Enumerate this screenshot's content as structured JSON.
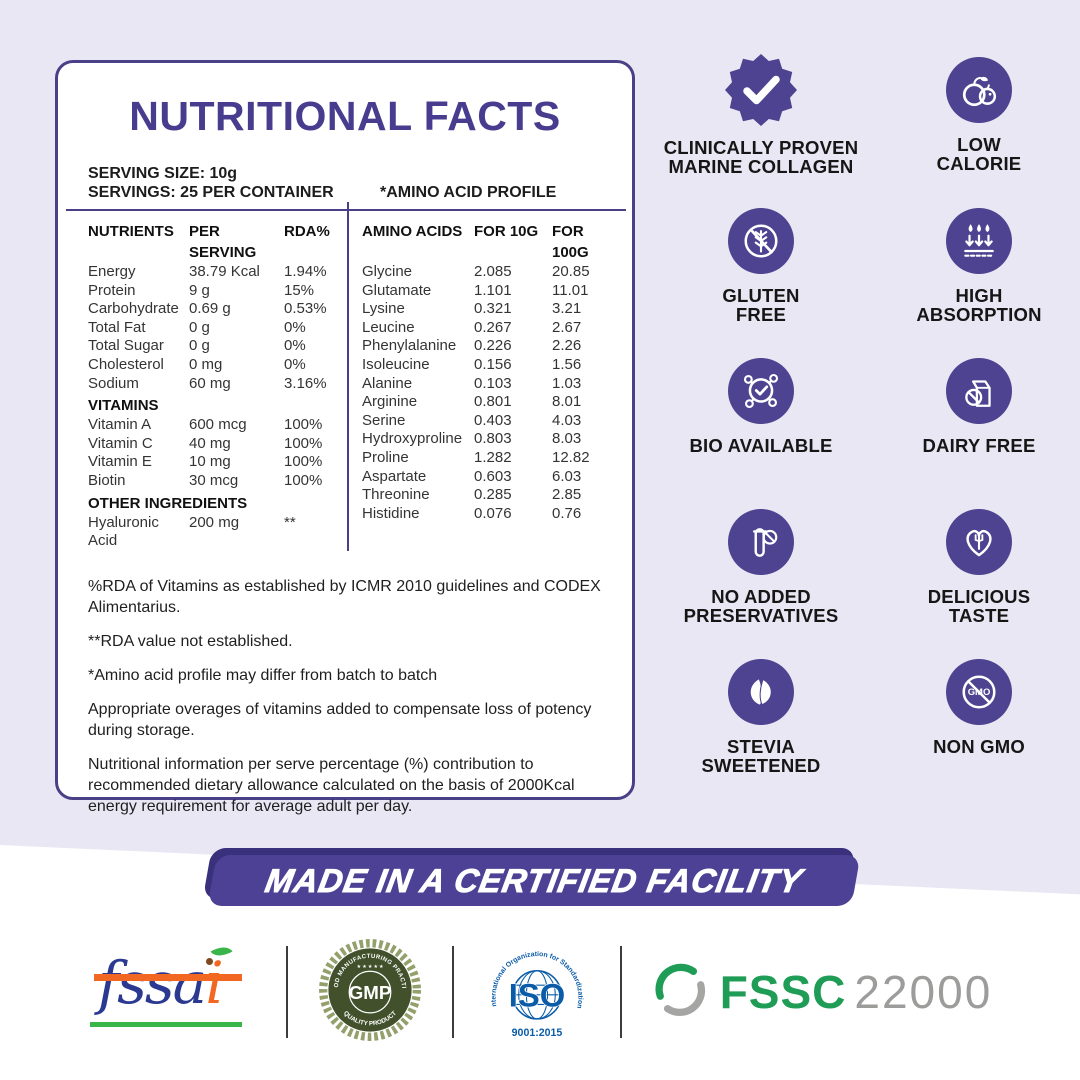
{
  "panel": {
    "title": "NUTRITIONAL FACTS",
    "serving_size": "SERVING SIZE: 10g",
    "servings": "SERVINGS: 25 PER CONTAINER",
    "amino_profile_title": "*AMINO ACID PROFILE",
    "left_table": {
      "header": [
        "NUTRIENTS",
        "PER SERVING",
        "RDA%"
      ],
      "sections": [
        {
          "rows": [
            [
              "Energy",
              "38.79 Kcal",
              "1.94%"
            ],
            [
              "Protein",
              "9 g",
              "15%"
            ],
            [
              "Carbohydrate",
              "0.69 g",
              "0.53%"
            ],
            [
              "Total Fat",
              "0 g",
              "0%"
            ],
            [
              "Total Sugar",
              "0 g",
              "0%"
            ],
            [
              "Cholesterol",
              "0 mg",
              "0%"
            ],
            [
              "Sodium",
              "60 mg",
              "3.16%"
            ]
          ]
        },
        {
          "title": "VITAMINS",
          "rows": [
            [
              "Vitamin A",
              "600 mcg",
              "100%"
            ],
            [
              "Vitamin C",
              "40 mg",
              "100%"
            ],
            [
              "Vitamin E",
              "10 mg",
              "100%"
            ],
            [
              "Biotin",
              "30 mcg",
              "100%"
            ]
          ]
        },
        {
          "title": "OTHER INGREDIENTS",
          "rows": [
            [
              "Hyaluronic Acid",
              "200 mg",
              "**"
            ]
          ]
        }
      ]
    },
    "right_table": {
      "header": [
        "AMINO ACIDS",
        "FOR 10G",
        "FOR 100G"
      ],
      "sections": [
        {
          "rows": [
            [
              "Glycine",
              "2.085",
              "20.85"
            ],
            [
              "Glutamate",
              "1.101",
              "11.01"
            ],
            [
              "Lysine",
              "0.321",
              "3.21"
            ],
            [
              "Leucine",
              "0.267",
              "2.67"
            ],
            [
              "Phenylalanine",
              "0.226",
              "2.26"
            ],
            [
              "Isoleucine",
              "0.156",
              "1.56"
            ],
            [
              "Alanine",
              "0.103",
              "1.03"
            ],
            [
              "Arginine",
              "0.801",
              "8.01"
            ],
            [
              "Serine",
              "0.403",
              "4.03"
            ],
            [
              "Hydroxyproline",
              "0.803",
              "8.03"
            ],
            [
              "Proline",
              "1.282",
              "12.82"
            ],
            [
              "Aspartate",
              "0.603",
              "6.03"
            ],
            [
              "Threonine",
              "0.285",
              "2.85"
            ],
            [
              "Histidine",
              "0.076",
              "0.76"
            ]
          ]
        }
      ]
    },
    "footnotes": [
      "%RDA of Vitamins as established by ICMR 2010 guidelines and CODEX Alimentarius.",
      "**RDA value not established.",
      "*Amino acid profile may differ from batch to batch",
      "Appropriate overages of vitamins added to compensate loss of potency during storage.",
      "Nutritional information per serve percentage (%) contribution to recommended dietary allowance calculated on the basis of 2000Kcal energy requirement for average adult per day."
    ]
  },
  "badges": [
    {
      "icon": "seal-check-icon",
      "lines": [
        "CLINICALLY PROVEN",
        "MARINE COLLAGEN"
      ]
    },
    {
      "icon": "fruit-icon",
      "lines": [
        "LOW",
        "CALORIE"
      ]
    },
    {
      "icon": "no-gluten-wheat-icon",
      "lines": [
        "GLUTEN",
        "FREE"
      ]
    },
    {
      "icon": "absorption-drops-icon",
      "lines": [
        "HIGH",
        "ABSORPTION"
      ]
    },
    {
      "icon": "molecule-check-icon",
      "lines": [
        "BIO AVAILABLE"
      ]
    },
    {
      "icon": "no-milk-carton-icon",
      "lines": [
        "DAIRY FREE"
      ]
    },
    {
      "icon": "no-test-tube-icon",
      "lines": [
        "NO ADDED",
        "PRESERVATIVES"
      ]
    },
    {
      "icon": "heart-fork-icon",
      "lines": [
        "DELICIOUS",
        "TASTE"
      ]
    },
    {
      "icon": "stevia-leaves-icon",
      "lines": [
        "STEVIA",
        "SWEETENED"
      ]
    },
    {
      "icon": "no-gmo-icon",
      "lines": [
        "NON GMO"
      ]
    }
  ],
  "banner": {
    "text": "MADE IN A CERTIFIED FACILITY"
  },
  "certifications": {
    "fssai": {
      "text_blue": "fssa",
      "text_orange": "i"
    },
    "gmp": {
      "arc_top": "GOOD MANUFACTURING PRACTICE",
      "stars": "★ ★ ★ ★ ★",
      "center": "GMP",
      "arc_bottom": "QUALITY PRODUCT"
    },
    "iso": {
      "arc": "International Organization for Standardization",
      "center": "ISO",
      "code": "9001:2015"
    },
    "fssc": {
      "brand": "FSSC",
      "number": "22000"
    }
  },
  "colors": {
    "background": "#e9e7f3",
    "accent_purple": "#4a4087",
    "badge_circle": "#4e4390",
    "banner_purple": "#4c4194",
    "banner_shadow": "#3a317c",
    "fssai_blue": "#2b3990",
    "fssai_orange": "#f26722",
    "fssai_green": "#3ab54a",
    "gmp_green": "#42512c",
    "iso_blue": "#0b5ca8",
    "fssc_green": "#1f9d57",
    "fssc_gray": "#9c9c9b"
  }
}
